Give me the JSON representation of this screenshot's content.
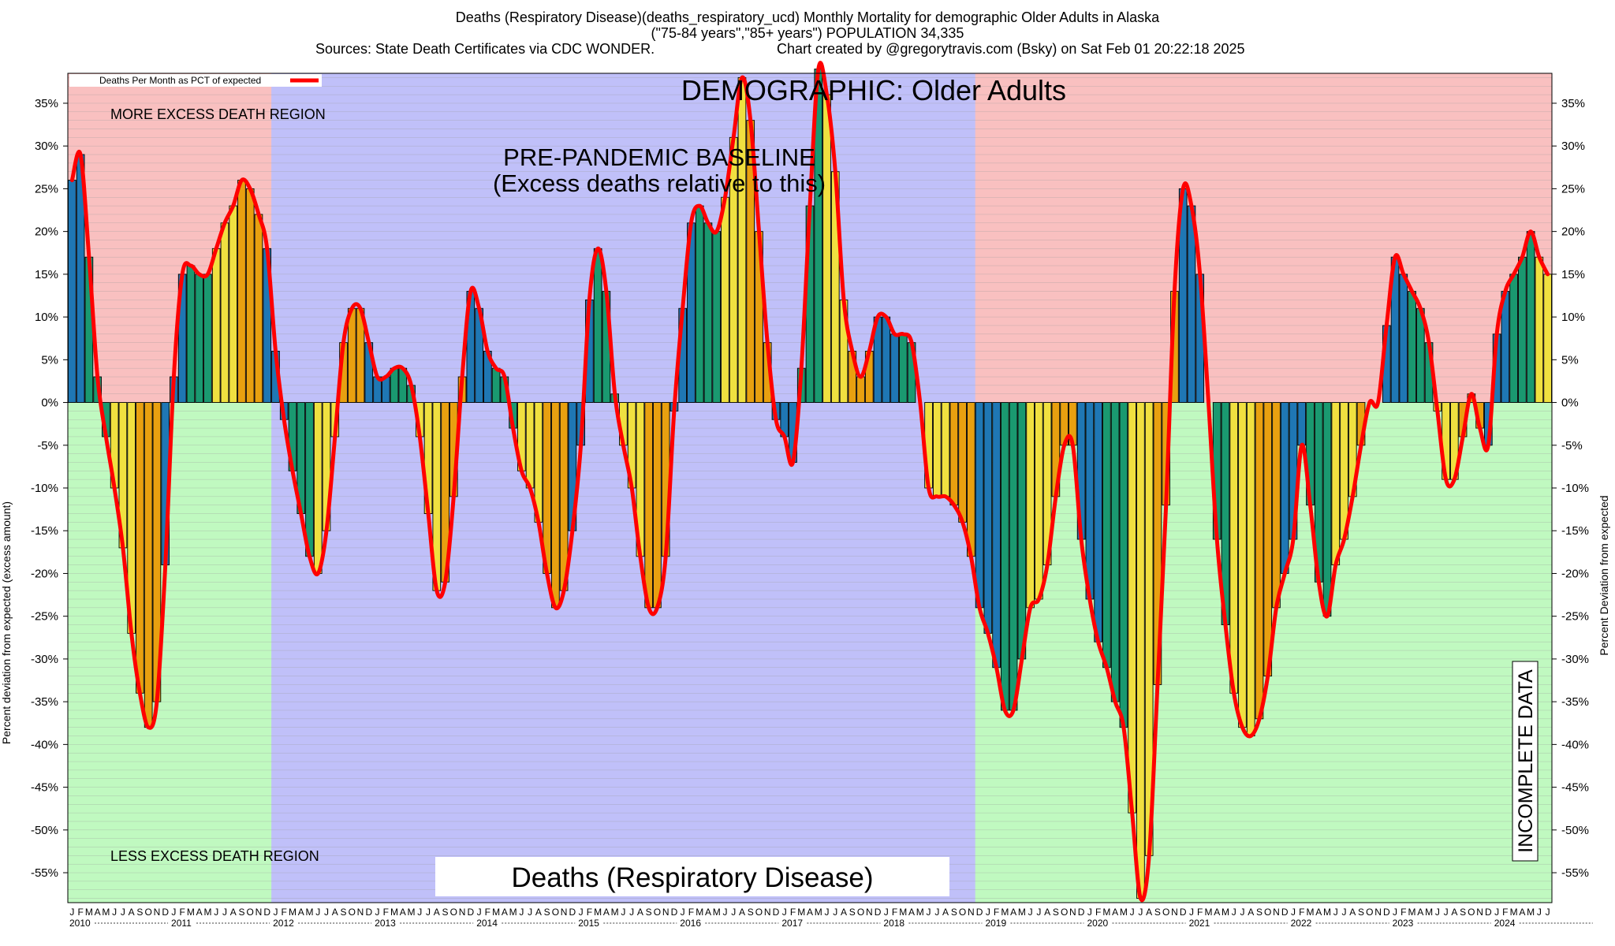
{
  "header": {
    "line1": "Deaths (Respiratory Disease)(deaths_respiratory_ucd) Monthly Mortality for demographic Older Adults in Alaska",
    "line2": "(\"75-84 years\",\"85+ years\") POPULATION 34,335",
    "line3_left": "Sources: State Death Certificates via CDC WONDER.",
    "line3_right": "Chart created by @gregorytravis.com (Bsky) on Sat Feb 01 20:22:18 2025"
  },
  "chart_data": {
    "type": "bar",
    "title": "DEMOGRAPHIC: Older Adults",
    "bottom_title": "Deaths (Respiratory Disease)",
    "ylabel_left": "Percent deviation from expected (excess amount)",
    "ylabel_right": "Percent Deviation from expected",
    "legend": {
      "label": "Deaths Per Month as PCT of expected",
      "color": "#ff0000",
      "placement": "top-left"
    },
    "ylim": [
      -58.5,
      38.5
    ],
    "yticks": [
      35,
      30,
      25,
      20,
      15,
      10,
      5,
      0,
      -5,
      -10,
      -15,
      -20,
      -25,
      -30,
      -35,
      -40,
      -45,
      -50,
      -55
    ],
    "ytick_suffix": "%",
    "month_letters": [
      "J",
      "F",
      "M",
      "A",
      "M",
      "J",
      "J",
      "A",
      "S",
      "O",
      "N",
      "D"
    ],
    "years": [
      "2010",
      "2011",
      "2012",
      "2013",
      "2014",
      "2015",
      "2016",
      "2017",
      "2018",
      "2019",
      "2020",
      "2021",
      "2022",
      "2023",
      "2024"
    ],
    "annotations": {
      "more_region": "MORE EXCESS DEATH REGION",
      "less_region": "LESS EXCESS DEATH REGION",
      "baseline_title": "PRE-PANDEMIC BASELINE",
      "baseline_sub": "(Excess deaths relative to this)",
      "incomplete": "INCOMPLETE DATA"
    },
    "regions": {
      "baseline_months": [
        24,
        107
      ],
      "incomplete_from_month": 175
    },
    "colors": {
      "more_bg": "#f9c0c0",
      "less_bg": "#c0f9c0",
      "baseline_bg": "#c0c0f9",
      "line": "#ff0000",
      "season_colors": [
        "#1f77b4",
        "#1a9970",
        "#f0e040",
        "#e8a010"
      ]
    },
    "values": [
      26,
      29,
      17,
      3,
      -4,
      -10,
      -17,
      -27,
      -34,
      -38,
      -35,
      -19,
      3,
      15,
      16,
      15,
      15,
      18,
      21,
      23,
      26,
      25,
      22,
      18,
      6,
      -2,
      -8,
      -13,
      -18,
      -20,
      -15,
      -4,
      7,
      11,
      11,
      7,
      3,
      3,
      4,
      4,
      2,
      -4,
      -13,
      -22,
      -21,
      -11,
      3,
      13,
      11,
      6,
      4,
      3,
      -3,
      -8,
      -10,
      -14,
      -20,
      -24,
      -22,
      -15,
      -5,
      12,
      18,
      13,
      1,
      -5,
      -10,
      -18,
      -24,
      -24,
      -18,
      -1,
      11,
      21,
      23,
      21,
      20,
      24,
      31,
      38,
      33,
      20,
      7,
      -2,
      -4,
      -7,
      4,
      23,
      39,
      36,
      27,
      12,
      6,
      3,
      6,
      10,
      10,
      8,
      8,
      7,
      0,
      -10,
      -11,
      -11,
      -12,
      -14,
      -18,
      -24,
      -27,
      -31,
      -36,
      -36,
      -30,
      -24,
      -23,
      -19,
      -11,
      -5,
      -5,
      -16,
      -23,
      -28,
      -31,
      -35,
      -38,
      -48,
      -58,
      -53,
      -33,
      -12,
      13,
      25,
      23,
      15,
      0,
      -16,
      -26,
      -34,
      -38,
      -39,
      -37,
      -32,
      -24,
      -20,
      -16,
      -5,
      -12,
      -21,
      -25,
      -19,
      -16,
      -11,
      -5,
      0,
      0,
      9,
      17,
      15,
      13,
      11,
      7,
      -1,
      -9,
      -9,
      -4,
      1,
      -3,
      -5,
      8,
      13,
      15,
      17,
      20,
      17,
      15
    ]
  }
}
